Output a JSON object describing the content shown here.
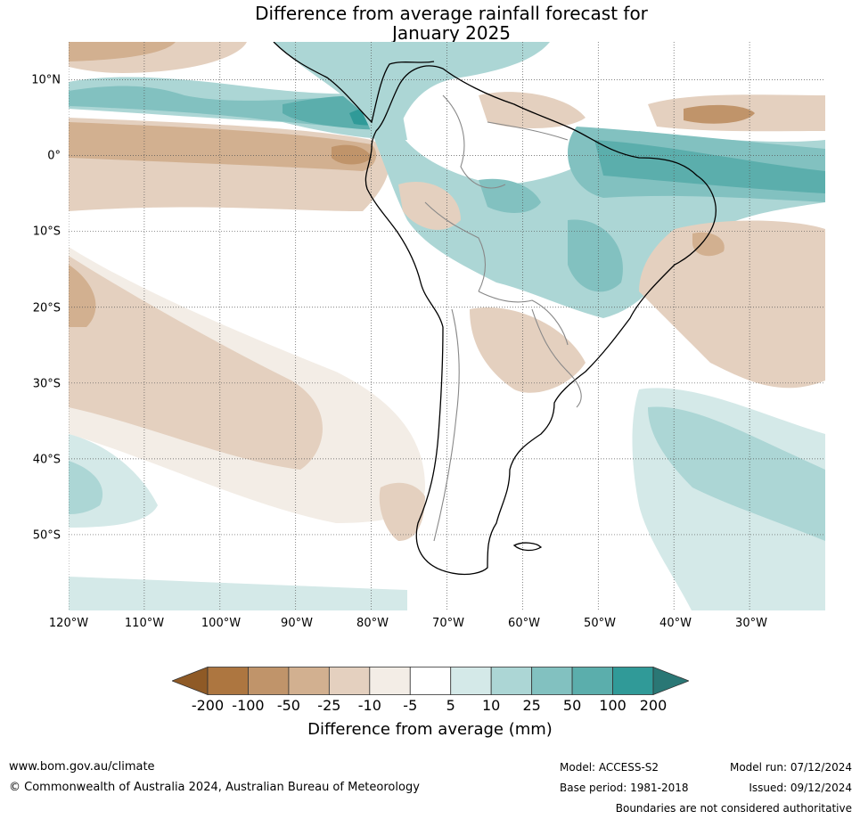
{
  "title": {
    "line1": "Difference from average rainfall forecast for",
    "line2": "January 2025"
  },
  "map": {
    "region": "South America",
    "latitude_labels": [
      "10°N",
      "0°",
      "10°S",
      "20°S",
      "30°S",
      "40°S",
      "50°S"
    ],
    "longitude_labels": [
      "120°W",
      "110°W",
      "100°W",
      "90°W",
      "80°W",
      "70°W",
      "60°W",
      "50°W",
      "40°W",
      "30°W"
    ],
    "lat_range": [
      -60,
      15
    ],
    "lon_range": [
      -120,
      -20
    ],
    "gridlines": "dotted"
  },
  "colorbar": {
    "label": "Difference from average (mm)",
    "ticks": [
      "-200",
      "-100",
      "-50",
      "-25",
      "-10",
      "-5",
      "5",
      "10",
      "25",
      "50",
      "100",
      "200"
    ],
    "colors": [
      "#8f5a26",
      "#ad7640",
      "#c0946a",
      "#d2b090",
      "#e4d0bf",
      "#f3ede6",
      "#ffffff",
      "#d4e9e8",
      "#acd6d5",
      "#82c1c0",
      "#5baeac",
      "#309a98",
      "#2a7775"
    ],
    "extend": "both"
  },
  "footer": {
    "website": "www.bom.gov.au/climate",
    "copyright": "© Commonwealth of Australia 2024, Australian Bureau of Meteorology",
    "model": "Model: ACCESS-S2",
    "base_period": "Base period: 1981-2018",
    "model_run": "Model run: 07/12/2024",
    "issued": "Issued: 09/12/2024",
    "disclaimer": "Boundaries are not considered authoritative"
  }
}
